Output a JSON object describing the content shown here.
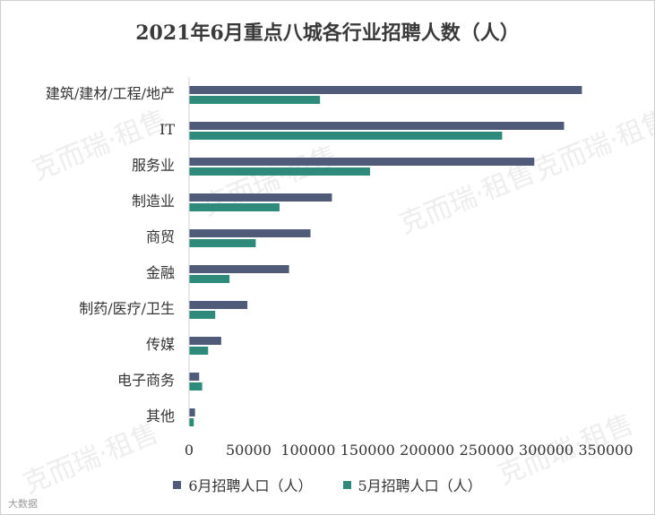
{
  "chart_data": {
    "type": "bar",
    "orientation": "horizontal",
    "title": "2021年6月重点八城各行业招聘人数（人）",
    "categories": [
      "建筑/建材/工程/地产",
      "IT",
      "服务业",
      "制造业",
      "商贸",
      "金融",
      "制药/医疗/卫生",
      "传媒",
      "电子商务",
      "其他"
    ],
    "series": [
      {
        "name": "6月招聘人口（人）",
        "color": "#4f5b78",
        "values": [
          330000,
          315000,
          290000,
          120000,
          102000,
          84000,
          49000,
          27000,
          8500,
          5000
        ]
      },
      {
        "name": "5月招聘人口（人）",
        "color": "#2e8b7c",
        "values": [
          110000,
          263000,
          152000,
          76000,
          56000,
          34000,
          22000,
          16000,
          11000,
          4000
        ]
      }
    ],
    "xlim": [
      0,
      350000
    ],
    "x_ticks": [
      "0",
      "50000",
      "100000",
      "150000",
      "200000",
      "250000",
      "300000",
      "350000"
    ],
    "grid": false,
    "legend_position": "bottom"
  },
  "watermark": "克而瑞·租售",
  "source": "大数据"
}
